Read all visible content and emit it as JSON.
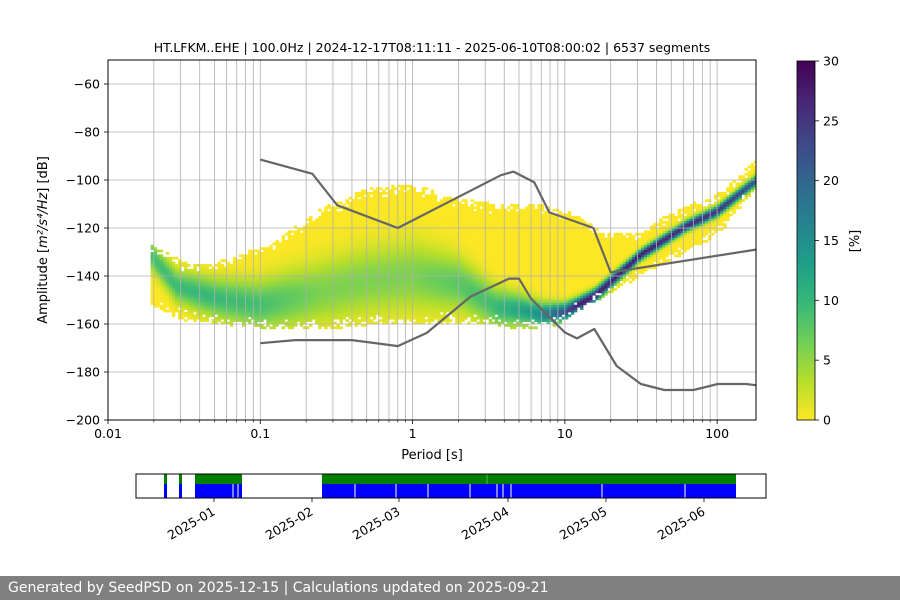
{
  "chart_data": {
    "type": "heatmap",
    "title": "HT.LFKM..EHE | 100.0Hz | 2024-12-17T08:11:11 - 2025-06-10T08:00:02 | 6537 segments",
    "xlabel": "Period [s]",
    "ylabel_prefix": "Amplitude [",
    "ylabel_math": "m²/s⁴/Hz",
    "ylabel_suffix": "] [dB]",
    "xscale": "log",
    "xlim": [
      0.01,
      180
    ],
    "ylim": [
      -200,
      -50
    ],
    "xtick_values": [
      0.01,
      0.1,
      1,
      10,
      100
    ],
    "xtick_labels": [
      "0.01",
      "0.1",
      "1",
      "10",
      "100"
    ],
    "ytick_values": [
      -60,
      -80,
      -100,
      -120,
      -140,
      -160,
      -180,
      -200
    ],
    "ytick_labels": [
      "−60",
      "−80",
      "−100",
      "−120",
      "−140",
      "−160",
      "−180",
      "−200"
    ],
    "colorbar": {
      "label": "[%]",
      "range": [
        0,
        30
      ],
      "tick_values": [
        0,
        5,
        10,
        15,
        20,
        25,
        30
      ],
      "tick_labels": [
        "0",
        "5",
        "10",
        "15",
        "20",
        "25",
        "30"
      ],
      "colormap_stops": [
        "#fde725",
        "#b5de2b",
        "#6ece58",
        "#35b779",
        "#1f9e89",
        "#26828e",
        "#31688e",
        "#3e4989",
        "#482878",
        "#440154"
      ]
    },
    "noise_models": [
      {
        "name": "upper",
        "points": [
          [
            0.1,
            -91.5
          ],
          [
            0.22,
            -97.4
          ],
          [
            0.32,
            -110.5
          ],
          [
            0.8,
            -120.0
          ],
          [
            3.8,
            -98.0
          ],
          [
            4.6,
            -96.5
          ],
          [
            6.3,
            -101.0
          ],
          [
            7.9,
            -113.5
          ],
          [
            15.4,
            -120.0
          ],
          [
            20,
            -138.5
          ],
          [
            180,
            -129
          ]
        ]
      },
      {
        "name": "lower",
        "points": [
          [
            0.1,
            -168.0
          ],
          [
            0.17,
            -166.7
          ],
          [
            0.4,
            -166.7
          ],
          [
            0.8,
            -169.2
          ],
          [
            1.24,
            -163.7
          ],
          [
            2.4,
            -148.6
          ],
          [
            4.3,
            -141.1
          ],
          [
            5.0,
            -141.1
          ],
          [
            6.0,
            -149.5
          ],
          [
            10,
            -163.5
          ],
          [
            12,
            -166.0
          ],
          [
            15.6,
            -162.1
          ],
          [
            21.9,
            -177.5
          ],
          [
            31.6,
            -185.0
          ],
          [
            45,
            -187.5
          ],
          [
            70,
            -187.5
          ],
          [
            101,
            -185.0
          ],
          [
            154,
            -185.0
          ],
          [
            180,
            -185.5
          ]
        ]
      }
    ],
    "timeline": {
      "date_labels": [
        "2025-01",
        "2025-02",
        "2025-03",
        "2025-04",
        "2025-05",
        "2025-06"
      ]
    }
  },
  "footer": {
    "text": "Generated by SeedPSD on 2025-12-15 | Calculations updated on 2025-09-21"
  }
}
